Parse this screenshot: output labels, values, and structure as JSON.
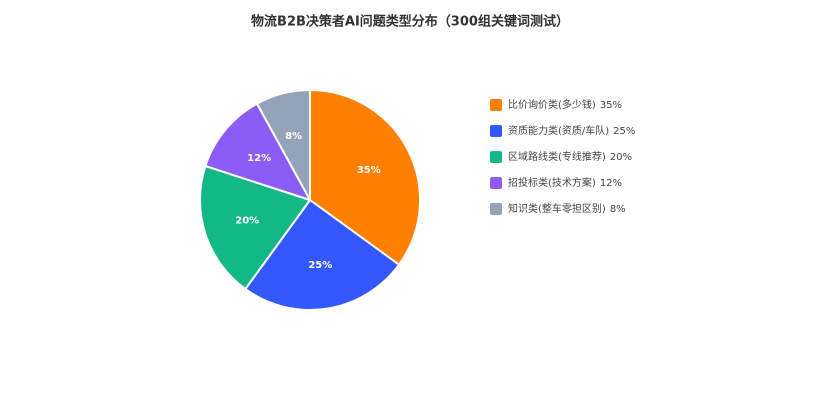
{
  "chart_data": {
    "type": "pie",
    "title": "物流B2B决策者AI问题类型分布（300组关键词测试）",
    "categories": [
      "比价询价类(多少钱)",
      "资质能力类(资质/车队)",
      "区域路线类(专线推荐)",
      "招投标类(技术方案)",
      "知识类(整车零担区别)"
    ],
    "values": [
      35,
      25,
      20,
      12,
      8
    ],
    "value_labels": [
      "35%",
      "25%",
      "20%",
      "12%",
      "8%"
    ],
    "colors": [
      "#ff7f00",
      "#3358ff",
      "#12b886",
      "#8b5cf6",
      "#94a3b8"
    ],
    "legend": "right"
  }
}
